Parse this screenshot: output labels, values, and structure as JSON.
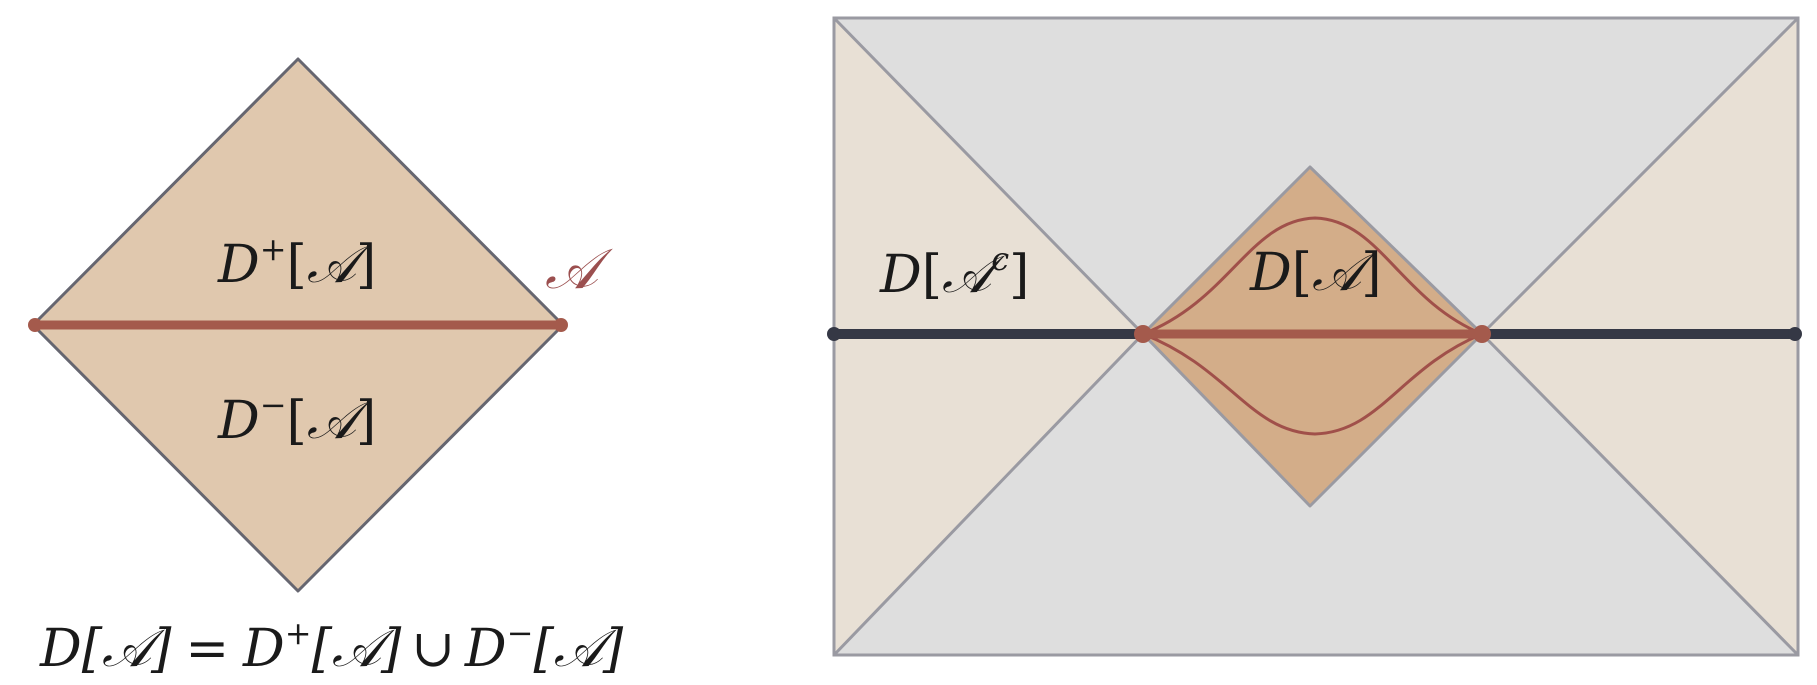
{
  "colors": {
    "diamond_fill": "#e0c8ae",
    "inner_diamond_fill": "#d3ad89",
    "side_wedge_fill": "#e8e0d5",
    "top_bottom_wedge_fill": "#dedede",
    "diamond_edge": "#666670",
    "rect_edge": "#9a9aa2",
    "region_curve": "#a0504a",
    "region_line": "#a45a4c",
    "complement_line": "#353845"
  },
  "left_diagram": {
    "label_future": {
      "D": "D",
      "sup": "+",
      "open": "[",
      "A": "𝒜",
      "close": "]"
    },
    "label_past": {
      "D": "D",
      "sup": "−",
      "open": "[",
      "A": "𝒜",
      "close": "]"
    },
    "region_label": "𝒜",
    "equation": {
      "lhs": "D[𝒜]",
      "eq": "=",
      "term1_D": "D",
      "term1_sup": "+",
      "term1_arg": "[𝒜]",
      "union": "∪",
      "term2_D": "D",
      "term2_sup": "−",
      "term2_arg": "[𝒜]"
    }
  },
  "right_diagram": {
    "label_complement": {
      "D": "D",
      "open": "[",
      "A": "𝒜",
      "sup": "c",
      "close": "]"
    },
    "label_domain": {
      "D": "D",
      "open": "[",
      "A": "𝒜",
      "close": "]"
    }
  }
}
